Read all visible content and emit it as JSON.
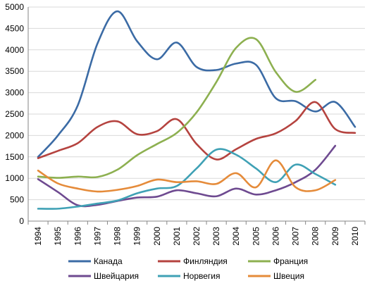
{
  "chart_data": {
    "type": "line",
    "title": "",
    "xlabel": "",
    "ylabel": "",
    "categories": [
      "1994",
      "1995",
      "1996",
      "1997",
      "1998",
      "1999",
      "2000",
      "2001",
      "2002",
      "2003",
      "2004",
      "2005",
      "2006",
      "2007",
      "2008",
      "2009",
      "2010"
    ],
    "ylim": [
      0,
      5000
    ],
    "yticks": [
      0,
      500,
      1000,
      1500,
      2000,
      2500,
      3000,
      3500,
      4000,
      4500,
      5000
    ],
    "ytick_labels": [
      "0",
      "500",
      "1000",
      "1500",
      "2000",
      "2500",
      "3000",
      "3500",
      "4000",
      "4500",
      "5000"
    ],
    "grid": "horizontal",
    "legend_position": "bottom",
    "series": [
      {
        "name": "Канада",
        "color": "#3B6BA5",
        "values": [
          1500,
          2000,
          2700,
          4150,
          4900,
          4200,
          3780,
          4170,
          3600,
          3530,
          3680,
          3650,
          2870,
          2800,
          2560,
          2780,
          2200
        ]
      },
      {
        "name": "Финляндия",
        "color": "#B5433F",
        "values": [
          1470,
          1640,
          1820,
          2200,
          2330,
          2030,
          2100,
          2380,
          1800,
          1440,
          1680,
          1920,
          2050,
          2340,
          2780,
          2150,
          2060
        ]
      },
      {
        "name": "Франция",
        "color": "#8DB050",
        "values": [
          1040,
          1010,
          1040,
          1030,
          1200,
          1540,
          1800,
          2060,
          2540,
          3250,
          4050,
          4250,
          3480,
          3020,
          3300,
          null,
          null
        ]
      },
      {
        "name": "Швейцария",
        "color": "#6E4A90",
        "values": [
          980,
          680,
          370,
          380,
          470,
          550,
          570,
          720,
          650,
          580,
          760,
          620,
          720,
          910,
          1200,
          1760,
          null
        ]
      },
      {
        "name": "Норвегия",
        "color": "#3FA1B5",
        "values": [
          290,
          290,
          340,
          410,
          480,
          650,
          760,
          820,
          1230,
          1670,
          1550,
          1230,
          910,
          1320,
          1100,
          850,
          null
        ]
      },
      {
        "name": "Швеция",
        "color": "#E58B3A",
        "values": [
          1180,
          880,
          760,
          690,
          730,
          820,
          970,
          910,
          930,
          870,
          1120,
          790,
          1420,
          790,
          720,
          960,
          null
        ]
      }
    ]
  }
}
